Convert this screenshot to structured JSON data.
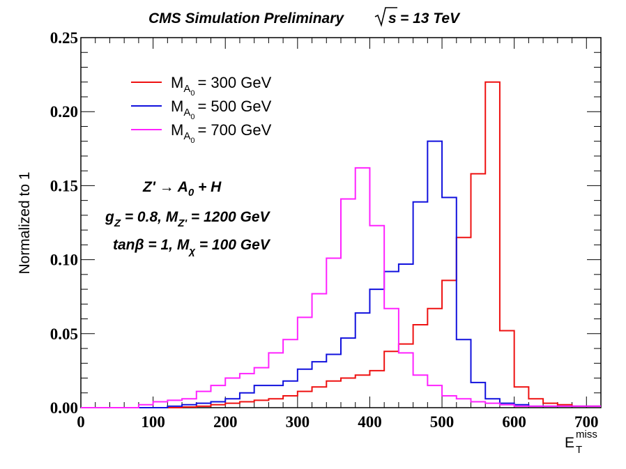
{
  "chart_data": {
    "type": "histogram",
    "title": "CMS Simulation Preliminary",
    "title_energy": "= 13 TeV",
    "xlabel_main": "E",
    "xlabel_sub": "T",
    "xlabel_sup": "miss",
    "ylabel": "Normalized to 1",
    "xlim": [
      0,
      720
    ],
    "ylim": [
      0,
      0.25
    ],
    "xticks": [
      "0",
      "100",
      "200",
      "300",
      "400",
      "500",
      "600",
      "700"
    ],
    "yticks": [
      "0.00",
      "0.05",
      "0.10",
      "0.15",
      "0.20",
      "0.25"
    ],
    "bin_edges": [
      0,
      20,
      40,
      60,
      80,
      100,
      120,
      140,
      160,
      180,
      200,
      220,
      240,
      260,
      280,
      300,
      320,
      340,
      360,
      380,
      400,
      420,
      440,
      460,
      480,
      500,
      520,
      540,
      560,
      580,
      600,
      620,
      640,
      660,
      680,
      700,
      720
    ],
    "series": [
      {
        "name": "300 GeV",
        "color": "#ee1111",
        "values": [
          0,
          0,
          0,
          0,
          0,
          0,
          0,
          0.0005,
          0.001,
          0.002,
          0.003,
          0.004,
          0.005,
          0.006,
          0.008,
          0.011,
          0.014,
          0.018,
          0.02,
          0.022,
          0.025,
          0.038,
          0.043,
          0.056,
          0.067,
          0.086,
          0.115,
          0.158,
          0.22,
          0.052,
          0.014,
          0.006,
          0.003,
          0.002,
          0.001,
          0.001
        ]
      },
      {
        "name": "500 GeV",
        "color": "#1111dd",
        "values": [
          0,
          0,
          0,
          0,
          0,
          0,
          0.001,
          0.002,
          0.003,
          0.004,
          0.006,
          0.01,
          0.015,
          0.015,
          0.018,
          0.026,
          0.031,
          0.036,
          0.047,
          0.064,
          0.08,
          0.092,
          0.097,
          0.139,
          0.18,
          0.142,
          0.046,
          0.017,
          0.006,
          0.003,
          0.002,
          0.001,
          0.001,
          0.001,
          0.001,
          0.001
        ]
      },
      {
        "name": "700 GeV",
        "color": "#ff22ff",
        "values": [
          0,
          0,
          0,
          0,
          0.002,
          0.004,
          0.005,
          0.006,
          0.011,
          0.015,
          0.02,
          0.023,
          0.027,
          0.037,
          0.046,
          0.061,
          0.077,
          0.101,
          0.141,
          0.162,
          0.123,
          0.067,
          0.037,
          0.022,
          0.015,
          0.008,
          0.006,
          0.004,
          0.003,
          0.002,
          0.001,
          0.001,
          0.001,
          0.001,
          0.001,
          0.001
        ]
      }
    ],
    "legend": {
      "placement": "top-left",
      "symbol_main": "M",
      "symbol_sub": "A",
      "symbol_subsub": "0",
      "prefix": "= "
    },
    "annotations": {
      "process_a": "Z' ",
      "process_b": "→ A",
      "process_sub": "0",
      "process_c": " + H",
      "coupling_a": "g",
      "coupling_sub": "Z",
      "coupling_b": " = 0.8, M",
      "coupling_sub2": "Z'",
      "coupling_c": " = 1200 GeV",
      "tanb_a": "tanβ = 1, M",
      "tanb_sub": "χ",
      "tanb_b": " = 100 GeV"
    }
  }
}
